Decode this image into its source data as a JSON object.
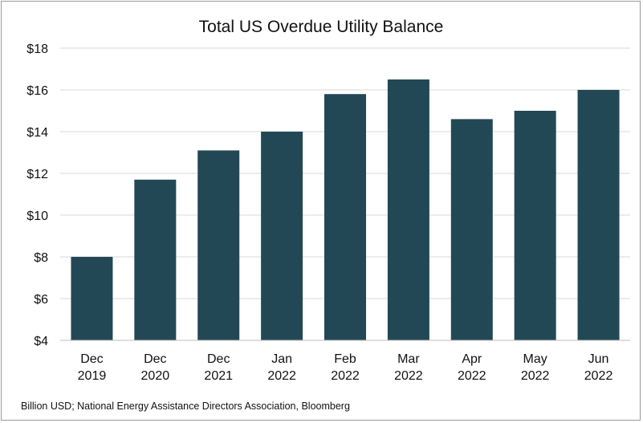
{
  "chart_data": {
    "type": "bar",
    "title": "Total US Overdue Utility Balance",
    "categories": [
      [
        "Dec",
        "2019"
      ],
      [
        "Dec",
        "2020"
      ],
      [
        "Dec",
        "2021"
      ],
      [
        "Jan",
        "2022"
      ],
      [
        "Feb",
        "2022"
      ],
      [
        "Mar",
        "2022"
      ],
      [
        "Apr",
        "2022"
      ],
      [
        "May",
        "2022"
      ],
      [
        "Jun",
        "2022"
      ]
    ],
    "values": [
      8.0,
      11.7,
      13.1,
      14.0,
      15.8,
      16.5,
      14.6,
      15.0,
      16.0
    ],
    "ylim": [
      4,
      18
    ],
    "yticks": [
      4,
      6,
      8,
      10,
      12,
      14,
      16,
      18
    ],
    "ytick_labels": [
      "$4",
      "$6",
      "$8",
      "$10",
      "$12",
      "$14",
      "$16",
      "$18"
    ],
    "xlabel": "",
    "ylabel": "",
    "grid": true,
    "bar_color": "#234855",
    "source_note": "Billion USD; National Energy Assistance Directors Association, Bloomberg"
  }
}
